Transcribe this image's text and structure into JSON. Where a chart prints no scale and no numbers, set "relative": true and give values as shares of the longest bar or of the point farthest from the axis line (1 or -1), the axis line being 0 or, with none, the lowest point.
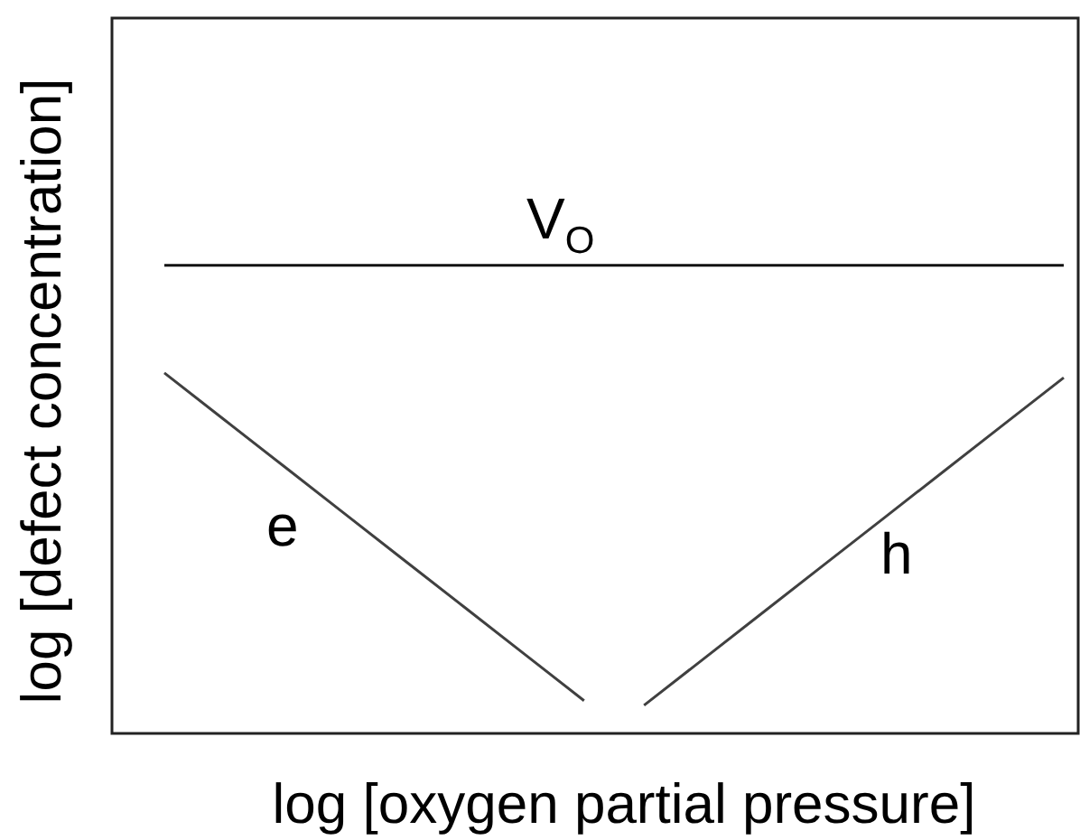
{
  "chart_data": {
    "type": "line",
    "xlabel": "log [oxygen partial pressure]",
    "ylabel": "log [defect concentration]",
    "relative": true,
    "categories": [
      null,
      null,
      null,
      null,
      null,
      null,
      null,
      null,
      null,
      null,
      null,
      null,
      null,
      null,
      null,
      null
    ],
    "series": [
      {
        "name": "V$_{O}$",
        "color": "#111111",
        "values": [
          1,
          1,
          1,
          1,
          1,
          1,
          1,
          1,
          1,
          1,
          1,
          1,
          1,
          1,
          1,
          1
        ]
      },
      {
        "name": "e",
        "color": "#404040",
        "values": [
          0.77,
          0.67,
          0.57,
          0.47,
          0.37,
          0.27,
          0.17,
          0.07,
          null,
          null,
          null,
          null,
          null,
          null,
          null,
          null
        ]
      },
      {
        "name": "h",
        "color": "#404040",
        "values": [
          null,
          null,
          null,
          null,
          null,
          null,
          null,
          null,
          0.06,
          0.16,
          0.26,
          0.36,
          0.46,
          0.56,
          0.66,
          0.76
        ]
      }
    ]
  }
}
